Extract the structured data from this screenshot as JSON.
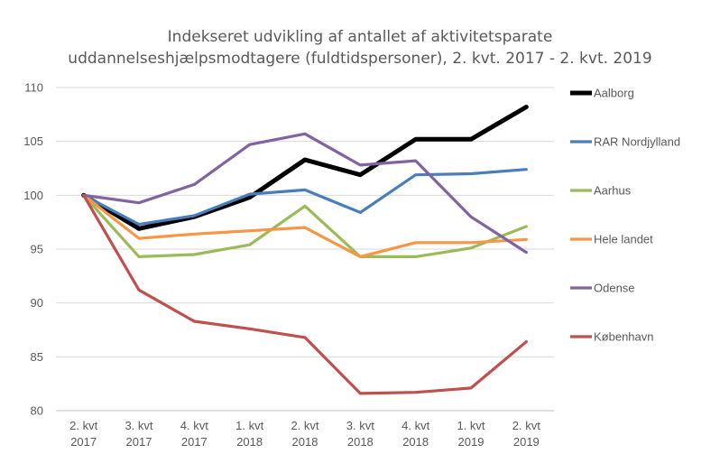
{
  "chart_data": {
    "type": "line",
    "title": [
      "Indekseret udvikling af antallet af aktivitetsparate",
      "uddannelseshjælpsmodtagere (fuldtidspersoner), 2. kvt. 2017 - 2. kvt. 2019"
    ],
    "categories": [
      [
        "2. kvt",
        "2017"
      ],
      [
        "3. kvt",
        "2017"
      ],
      [
        "4. kvt",
        "2017"
      ],
      [
        "1. kvt",
        "2018"
      ],
      [
        "2. kvt",
        "2018"
      ],
      [
        "3. kvt",
        "2018"
      ],
      [
        "4. kvt",
        "2018"
      ],
      [
        "1. kvt",
        "2019"
      ],
      [
        "2. kvt",
        "2019"
      ]
    ],
    "ylim": [
      80,
      110
    ],
    "yticks": [
      80,
      85,
      90,
      95,
      100,
      105,
      110
    ],
    "grid": true,
    "legend_position": "right",
    "series": [
      {
        "name": "Aalborg",
        "color": "#000000",
        "values": [
          100,
          96.9,
          98.0,
          99.8,
          103.3,
          101.9,
          105.2,
          105.2,
          108.2
        ]
      },
      {
        "name": "RAR Nordjylland",
        "color": "#4a7ebb",
        "values": [
          100,
          97.3,
          98.1,
          100.1,
          100.5,
          98.4,
          101.9,
          102.0,
          102.4
        ]
      },
      {
        "name": "Aarhus",
        "color": "#9bbb59",
        "values": [
          100,
          94.3,
          94.5,
          95.4,
          99.0,
          94.3,
          94.3,
          95.1,
          97.1
        ]
      },
      {
        "name": "Hele landet",
        "color": "#f79646",
        "values": [
          100,
          96.0,
          96.4,
          96.7,
          97.0,
          94.3,
          95.6,
          95.6,
          95.9
        ]
      },
      {
        "name": "Odense",
        "color": "#8064a2",
        "values": [
          100,
          99.3,
          101.0,
          104.7,
          105.7,
          102.8,
          103.2,
          98.0,
          94.7
        ]
      },
      {
        "name": "København",
        "color": "#c0504d",
        "values": [
          100,
          91.2,
          88.3,
          87.6,
          86.8,
          81.6,
          81.7,
          82.1,
          86.4
        ]
      }
    ]
  }
}
